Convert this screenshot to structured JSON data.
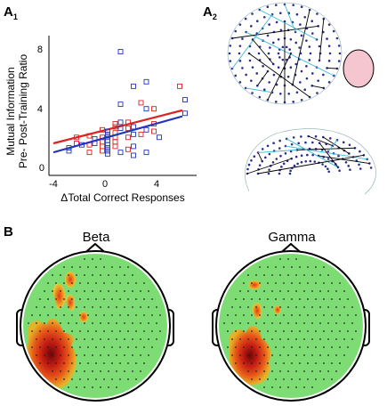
{
  "panels": {
    "a1": "A",
    "a1_sub": "1",
    "a2": "A",
    "a2_sub": "2",
    "b": "B"
  },
  "scatter": {
    "ylabel_line1": "Mutual Information",
    "ylabel_line2": "Pre- Post-Training Ratio",
    "xlabel": "ΔTotal Correct Responses",
    "xticks": [
      "-4",
      "0",
      "4"
    ],
    "yticks": [
      "0",
      "4",
      "8"
    ]
  },
  "chart_data": {
    "type": "scatter",
    "title": "",
    "xlabel": "ΔTotal Correct Responses",
    "ylabel": "Mutual Information Pre- Post-Training Ratio",
    "xlim": [
      -4,
      6.4
    ],
    "ylim": [
      0,
      8.7
    ],
    "grid": false,
    "legend": "none",
    "series": [
      {
        "color": "#dd2222",
        "points": [
          [
            -2,
            2.0
          ],
          [
            -2,
            1.6
          ],
          [
            -1,
            2.1
          ],
          [
            -1,
            1.5
          ],
          [
            -1,
            1.0
          ],
          [
            0,
            2.5
          ],
          [
            0,
            2.0
          ],
          [
            0,
            1.7
          ],
          [
            0,
            1.4
          ],
          [
            0,
            1.1
          ],
          [
            1,
            2.9
          ],
          [
            1,
            2.7
          ],
          [
            1,
            2.3
          ],
          [
            1,
            2.0
          ],
          [
            1,
            1.7
          ],
          [
            1,
            1.4
          ],
          [
            2,
            3.0
          ],
          [
            2,
            2.6
          ],
          [
            2,
            2.0
          ],
          [
            2,
            1.2
          ],
          [
            3,
            4.3
          ],
          [
            3,
            2.2
          ],
          [
            4,
            3.9
          ],
          [
            4,
            2.9
          ],
          [
            4,
            2.4
          ],
          [
            6,
            5.4
          ]
        ],
        "fit": [
          [
            -4,
            1.6
          ],
          [
            6,
            3.8
          ]
        ]
      },
      {
        "color": "#2233bb",
        "points": [
          [
            -3,
            1.3
          ],
          [
            -3,
            1.1
          ],
          [
            -2,
            1.5
          ],
          [
            -1,
            1.9
          ],
          [
            -1,
            1.6
          ],
          [
            0,
            2.4
          ],
          [
            0,
            2.2
          ],
          [
            0,
            2.0
          ],
          [
            0,
            1.8
          ],
          [
            0,
            1.5
          ],
          [
            0,
            1.3
          ],
          [
            0,
            1.1
          ],
          [
            0,
            0.9
          ],
          [
            1,
            7.7
          ],
          [
            1,
            4.2
          ],
          [
            1,
            3.0
          ],
          [
            1,
            2.6
          ],
          [
            1,
            1.0
          ],
          [
            2,
            5.4
          ],
          [
            2,
            2.7
          ],
          [
            2,
            2.2
          ],
          [
            2,
            1.4
          ],
          [
            2,
            0.8
          ],
          [
            3,
            5.7
          ],
          [
            3,
            3.9
          ],
          [
            3,
            2.5
          ],
          [
            3,
            1.0
          ],
          [
            4,
            2.0
          ],
          [
            6,
            4.5
          ],
          [
            6,
            3.6
          ]
        ],
        "fit": [
          [
            -4,
            1.0
          ],
          [
            6,
            3.4
          ]
        ]
      }
    ]
  },
  "topomaps": {
    "beta": {
      "title": "Beta"
    },
    "gamma": {
      "title": "Gamma"
    }
  },
  "colors": {
    "scalp_fill": "#7ddc74",
    "hot_core": "#7a0a0a",
    "hot_mid": "#e03020",
    "hot_edge": "#f0a020",
    "highlight_ellipse": "#f5c6d0"
  }
}
